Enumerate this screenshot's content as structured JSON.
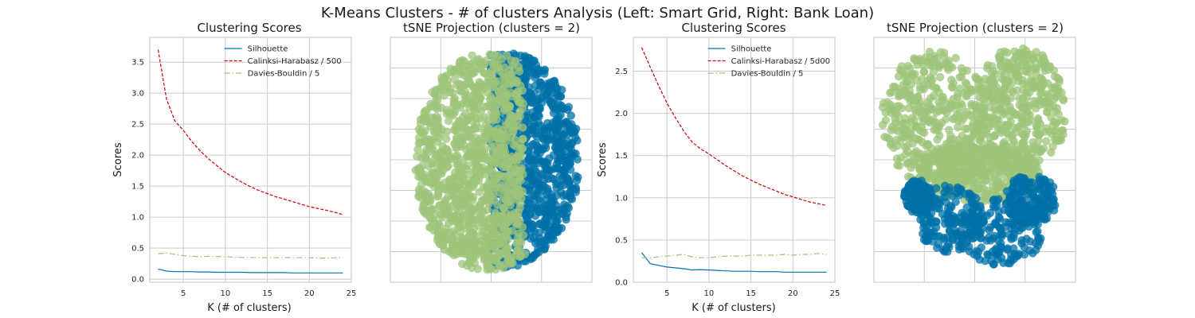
{
  "figure": {
    "title": "K-Means Clusters - # of clusters Analysis (Left: Smart Grid, Right: Bank Loan)"
  },
  "colors": {
    "silhouette": "#0072b2",
    "calinski": "#cc0000",
    "davies": "#9dc47a",
    "cluster_0": "#0072a8",
    "cluster_1": "#9dc47a",
    "grid": "#cccccc",
    "frame": "#cccccc"
  },
  "chart_data": [
    {
      "type": "line",
      "title": "Clustering Scores",
      "xlabel": "K (# of clusters)",
      "ylabel": "Scores",
      "xlim": [
        1,
        25
      ],
      "ylim": [
        -0.05,
        3.9
      ],
      "xticks": [
        5,
        10,
        15,
        20,
        25
      ],
      "yticks": [
        0.0,
        0.5,
        1.0,
        1.5,
        2.0,
        2.5,
        3.0,
        3.5
      ],
      "ytick_labels": [
        "0.0",
        "0.5",
        "1.0",
        "1.5",
        "2.0",
        "2.5",
        "3.0",
        "3.5"
      ],
      "x": [
        2,
        3,
        4,
        5,
        6,
        7,
        8,
        9,
        10,
        11,
        12,
        13,
        14,
        15,
        16,
        17,
        18,
        19,
        20,
        21,
        22,
        23,
        24
      ],
      "series": [
        {
          "name": "Silhouette",
          "style": "solid",
          "color_key": "silhouette",
          "values": [
            0.16,
            0.13,
            0.12,
            0.12,
            0.12,
            0.115,
            0.115,
            0.11,
            0.11,
            0.11,
            0.11,
            0.105,
            0.105,
            0.105,
            0.105,
            0.105,
            0.1,
            0.1,
            0.1,
            0.1,
            0.1,
            0.1,
            0.1
          ]
        },
        {
          "name": "Calinksi-Harabasz / 500",
          "style": "dashed",
          "color_key": "calinski",
          "values": [
            3.7,
            2.9,
            2.55,
            2.4,
            2.22,
            2.07,
            1.94,
            1.83,
            1.72,
            1.64,
            1.56,
            1.49,
            1.43,
            1.38,
            1.33,
            1.29,
            1.25,
            1.21,
            1.17,
            1.14,
            1.11,
            1.08,
            1.04
          ]
        },
        {
          "name": "Davies-Bouldin / 5",
          "style": "dashdot",
          "color_key": "davies",
          "values": [
            0.41,
            0.42,
            0.4,
            0.38,
            0.37,
            0.36,
            0.37,
            0.365,
            0.36,
            0.355,
            0.35,
            0.35,
            0.345,
            0.345,
            0.345,
            0.35,
            0.345,
            0.345,
            0.345,
            0.34,
            0.34,
            0.345,
            0.345
          ]
        }
      ],
      "legend": "top-right",
      "grid": true
    },
    {
      "type": "scatter",
      "title": "tSNE Projection (clusters = 2)",
      "xlabel": "",
      "ylabel": "",
      "xlim": [
        0,
        100
      ],
      "ylim": [
        0,
        100
      ],
      "grid": true,
      "tick_labels": false,
      "clusters": [
        {
          "color_key": "cluster_0",
          "shape": "ellipse",
          "cx": 57,
          "cy": 50,
          "rx": 37,
          "ry": 44,
          "x_min": 53,
          "point_count": 900
        },
        {
          "color_key": "cluster_1",
          "shape": "ellipse",
          "cx": 49,
          "cy": 51,
          "rx": 37,
          "ry": 45,
          "x_max": 63,
          "point_count": 1100
        }
      ]
    },
    {
      "type": "line",
      "title": "Clustering Scores",
      "xlabel": "K (# of clusters)",
      "ylabel": "Scores",
      "xlim": [
        1,
        25
      ],
      "ylim": [
        0,
        2.9
      ],
      "xticks": [
        5,
        10,
        15,
        20,
        25
      ],
      "yticks": [
        0.0,
        0.5,
        1.0,
        1.5,
        2.0,
        2.5
      ],
      "ytick_labels": [
        "0.0",
        "0.5",
        "1.0",
        "1.5",
        "2.0",
        "2.5"
      ],
      "x": [
        2,
        3,
        4,
        5,
        6,
        7,
        8,
        9,
        10,
        11,
        12,
        13,
        14,
        15,
        16,
        17,
        18,
        19,
        20,
        21,
        22,
        23,
        24
      ],
      "series": [
        {
          "name": "Silhouette",
          "style": "solid",
          "color_key": "silhouette",
          "values": [
            0.35,
            0.22,
            0.2,
            0.18,
            0.17,
            0.16,
            0.145,
            0.15,
            0.145,
            0.14,
            0.135,
            0.13,
            0.13,
            0.13,
            0.125,
            0.125,
            0.125,
            0.12,
            0.12,
            0.12,
            0.12,
            0.12,
            0.12
          ]
        },
        {
          "name": "Calinksi-Harabasz / 5d00",
          "style": "dashed",
          "color_key": "calinski",
          "values": [
            2.78,
            2.55,
            2.33,
            2.12,
            1.95,
            1.79,
            1.66,
            1.58,
            1.52,
            1.45,
            1.38,
            1.32,
            1.26,
            1.21,
            1.16,
            1.12,
            1.08,
            1.04,
            1.01,
            0.98,
            0.95,
            0.93,
            0.91
          ]
        },
        {
          "name": "Davies-Bouldin / 5",
          "style": "dashdot",
          "color_key": "davies",
          "values": [
            0.29,
            0.29,
            0.3,
            0.31,
            0.32,
            0.33,
            0.3,
            0.29,
            0.29,
            0.3,
            0.31,
            0.31,
            0.31,
            0.32,
            0.32,
            0.32,
            0.32,
            0.33,
            0.32,
            0.33,
            0.33,
            0.34,
            0.33
          ]
        }
      ],
      "legend": "top-right",
      "grid": true
    },
    {
      "type": "scatter",
      "title": "tSNE Projection (clusters = 2)",
      "xlabel": "",
      "ylabel": "",
      "xlim": [
        0,
        100
      ],
      "ylim": [
        0,
        100
      ],
      "grid": true,
      "tick_labels": false,
      "clusters": [
        {
          "color_key": "cluster_1",
          "shape": "two-lobes-top",
          "point_count": 1200
        },
        {
          "color_key": "cluster_0",
          "shape": "bottom-blob",
          "point_count": 700
        }
      ]
    }
  ]
}
